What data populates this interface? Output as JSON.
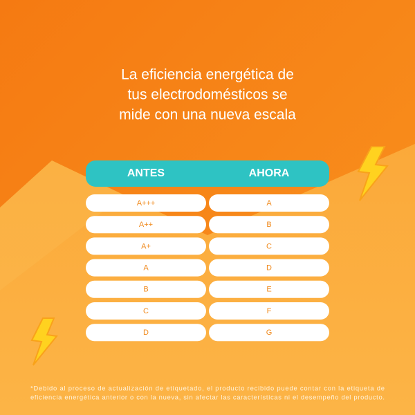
{
  "title": [
    "La eficiencia energética de",
    "tus electrodomésticos se",
    "mide con una nueva escala"
  ],
  "table": {
    "header": [
      "ANTES",
      "AHORA"
    ],
    "rows": [
      [
        "A+++",
        "A"
      ],
      [
        "A++",
        "B"
      ],
      [
        "A+",
        "C"
      ],
      [
        "A",
        "D"
      ],
      [
        "B",
        "E"
      ],
      [
        "C",
        "F"
      ],
      [
        "D",
        "G"
      ]
    ]
  },
  "footnote": [
    "*Debido al proceso de actualización de etiquetado, el producto recibido puede contar con la etiqueta de",
    "eficiencia energética anterior o con la nueva, sin afectar las características ni el desempeño del producto."
  ]
}
